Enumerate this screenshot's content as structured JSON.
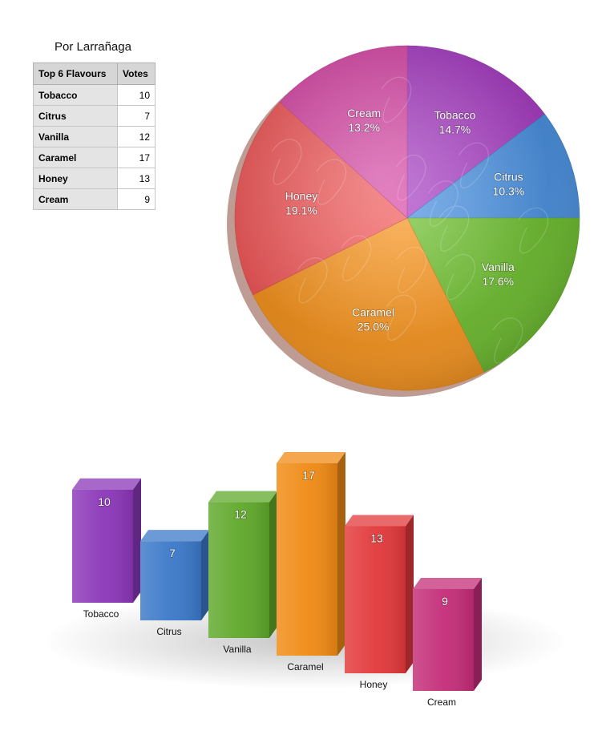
{
  "table": {
    "title": "Por Larrañaga",
    "headers": [
      "Top 6 Flavours",
      "Votes"
    ],
    "rows": [
      {
        "name": "Tobacco",
        "votes": "10"
      },
      {
        "name": "Citrus",
        "votes": "7"
      },
      {
        "name": "Vanilla",
        "votes": "12"
      },
      {
        "name": "Caramel",
        "votes": "17"
      },
      {
        "name": "Honey",
        "votes": "13"
      },
      {
        "name": "Cream",
        "votes": "9"
      }
    ]
  },
  "chart_data": [
    {
      "type": "pie",
      "categories": [
        "Tobacco",
        "Citrus",
        "Vanilla",
        "Caramel",
        "Honey",
        "Cream"
      ],
      "values": [
        10,
        7,
        12,
        17,
        13,
        9
      ],
      "percent_labels": [
        "14.7%",
        "10.3%",
        "17.6%",
        "25.0%",
        "19.1%",
        "13.2%"
      ],
      "colors": [
        "#a83fc4",
        "#4a90e0",
        "#6cbd2e",
        "#f7941e",
        "#f2595a",
        "#d94aa8"
      ]
    },
    {
      "type": "bar",
      "categories": [
        "Tobacco",
        "Citrus",
        "Vanilla",
        "Caramel",
        "Honey",
        "Cream"
      ],
      "values": [
        10,
        7,
        12,
        17,
        13,
        9
      ],
      "colors": [
        "#8b36b8",
        "#3a78c8",
        "#5fa82a",
        "#f08a14",
        "#e2383a",
        "#c42c78"
      ]
    }
  ]
}
